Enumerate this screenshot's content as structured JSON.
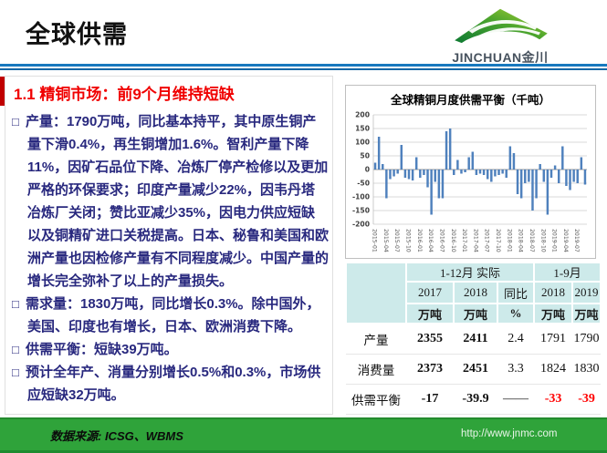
{
  "header": {
    "title": "全球供需",
    "logo_text": "JINCHUAN金川"
  },
  "section": {
    "heading": "1.1 精铜市场：前9个月维持短缺"
  },
  "bullet_glyph": "□",
  "bullets": [
    "产量：1790万吨，同比基本持平，其中原生铜产量下滑0.4%，再生铜增加1.6%。智利产量下降11%，因矿石品位下降、冶炼厂停产检修以及更加严格的环保要求；印度产量减少22%，因韦丹塔冶炼厂关闭；赞比亚减少35%，因电力供应短缺以及铜精矿进口关税提高。日本、秘鲁和美国和欧洲产量也因检修产量有不同程度减少。中国产量的增长完全弥补了以上的产量损失。",
    "需求量：1830万吨，同比增长0.3%。除中国外，美国、印度也有增长，日本、欧洲消费下降。",
    "供需平衡：短缺39万吨。",
    "预计全年产、消量分别增长0.5%和0.3%，市场供应短缺32万吨。"
  ],
  "chart_data": {
    "type": "bar",
    "title": "全球精铜月度供需平衡（千吨）",
    "ylabel": "",
    "xlabel": "",
    "ylim": [
      -200,
      200
    ],
    "yticks": [
      200,
      150,
      100,
      50,
      0,
      -50,
      -100,
      -150,
      -200
    ],
    "grid": true,
    "legend": "none",
    "bar_color": "#4f81bd",
    "grid_color": "#d9d9d9",
    "zero_line_color": "#9a9a9a",
    "tick_label_color": "#404040",
    "xtick_label_color": "#595959",
    "label_every": 3,
    "months": [
      "2015-01",
      "2015-02",
      "2015-03",
      "2015-04",
      "2015-05",
      "2015-06",
      "2015-07",
      "2015-08",
      "2015-09",
      "2015-10",
      "2015-11",
      "2015-12",
      "2016-01",
      "2016-02",
      "2016-03",
      "2016-04",
      "2016-05",
      "2016-06",
      "2016-07",
      "2016-08",
      "2016-09",
      "2016-10",
      "2016-11",
      "2016-12",
      "2017-01",
      "2017-02",
      "2017-03",
      "2017-04",
      "2017-05",
      "2017-06",
      "2017-07",
      "2017-08",
      "2017-09",
      "2017-10",
      "2017-11",
      "2017-12",
      "2018-01",
      "2018-02",
      "2018-03",
      "2018-04",
      "2018-05",
      "2018-06",
      "2018-07",
      "2018-08",
      "2018-09",
      "2018-10",
      "2018-11",
      "2018-12",
      "2019-01",
      "2019-02",
      "2019-03",
      "2019-04",
      "2019-05",
      "2019-06",
      "2019-07",
      "2019-08",
      "2019-09"
    ],
    "values": [
      25,
      120,
      20,
      -105,
      -35,
      -25,
      -15,
      90,
      -30,
      -35,
      -40,
      45,
      -30,
      -20,
      -65,
      -165,
      -45,
      -105,
      -105,
      140,
      150,
      -20,
      35,
      -15,
      -10,
      45,
      65,
      -20,
      -15,
      -20,
      -35,
      -45,
      -25,
      -20,
      -15,
      -30,
      85,
      60,
      -90,
      -105,
      -50,
      -45,
      -150,
      -105,
      20,
      -45,
      -165,
      -30,
      15,
      -50,
      85,
      -60,
      -75,
      -45,
      -50,
      45,
      -55
    ]
  },
  "table": {
    "group_headers": [
      "1-12月 实际",
      "1-9月"
    ],
    "col_years": [
      "2017",
      "2018",
      "同比",
      "2018",
      "2019"
    ],
    "col_units": [
      "万吨",
      "万吨",
      "%",
      "万吨",
      "万吨"
    ],
    "rows": [
      {
        "label": "产量",
        "cells": [
          "2355",
          "2411",
          "2.4",
          "1791",
          "1790"
        ]
      },
      {
        "label": "消费量",
        "cells": [
          "2373",
          "2451",
          "3.3",
          "1824",
          "1830"
        ]
      },
      {
        "label": "供需平衡",
        "cells": [
          "-17",
          "-39.9",
          "——",
          "-33",
          "-39"
        ]
      }
    ]
  },
  "footer": {
    "source": "数据来源: ICSG、WBMS",
    "url": "http://www.jnmc.com"
  },
  "colors": {
    "heading_red": "#f00000",
    "accent_bar_red": "#c00000",
    "body_text_navy": "#28287e",
    "rule_blue": "#1879be",
    "footer_green": "#2fa33a",
    "table_header_bg": "#cdeaea",
    "negative_highlight": "#ff0000"
  }
}
